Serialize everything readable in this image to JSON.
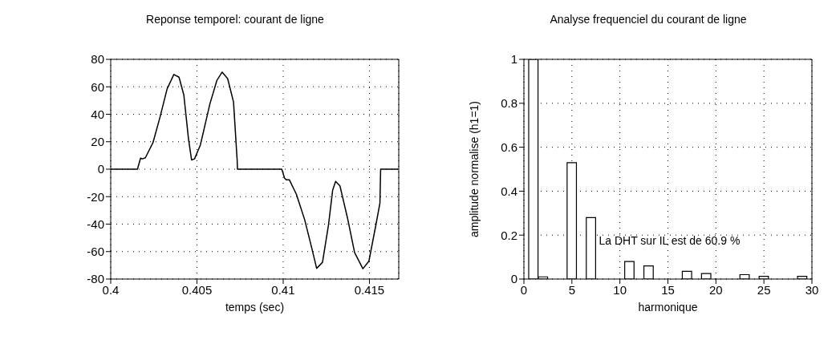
{
  "chart_data": [
    {
      "type": "line",
      "title": "Reponse temporel: courant de ligne",
      "xlabel": "temps (sec)",
      "x": [
        0.4,
        0.40155,
        0.40173,
        0.40183,
        0.40201,
        0.40245,
        0.40286,
        0.40327,
        0.40366,
        0.40396,
        0.40424,
        0.40451,
        0.40469,
        0.40486,
        0.4052,
        0.40575,
        0.40616,
        0.40646,
        0.40678,
        0.40712,
        0.40733,
        0.40735,
        0.40992,
        0.41008,
        0.41019,
        0.41036,
        0.41077,
        0.41125,
        0.41166,
        0.41194,
        0.41228,
        0.41263,
        0.41287,
        0.41304,
        0.41329,
        0.41373,
        0.41414,
        0.41462,
        0.41497,
        0.41538,
        0.41561,
        0.41565,
        0.41668
      ],
      "series": [
        {
          "color": "#000000",
          "values": [
            0,
            0,
            8,
            7.5,
            8.3,
            19.3,
            38,
            58.5,
            69,
            67,
            54,
            22,
            6.7,
            7.5,
            17.7,
            47.5,
            64.8,
            70.7,
            66,
            49,
            6.7,
            0,
            0,
            -6.6,
            -7.8,
            -7.8,
            -18.4,
            -37,
            -57.6,
            -72.2,
            -67.8,
            -40.3,
            -15.2,
            -8.9,
            -12.1,
            -35.6,
            -60.7,
            -72.5,
            -67,
            -40.3,
            -24.6,
            0,
            0
          ]
        }
      ],
      "xlim": [
        0.4,
        0.4167
      ],
      "xticks": [
        0.4,
        0.405,
        0.41,
        0.415
      ],
      "ylim": [
        -80,
        80
      ],
      "yticks": [
        -80,
        -60,
        -40,
        -20,
        0,
        20,
        40,
        60,
        80
      ],
      "grid": true,
      "marker": "none",
      "line_style": "solid",
      "legend": false
    },
    {
      "type": "bar",
      "title": "Analyse frequenciel du courant de ligne",
      "xlabel": "harmonique",
      "ylabel": "amplitude normalise (h1=1)",
      "x": [
        1,
        2,
        3,
        4,
        5,
        6,
        7,
        8,
        9,
        10,
        11,
        12,
        13,
        14,
        15,
        16,
        17,
        18,
        19,
        20,
        21,
        22,
        23,
        24,
        25,
        26,
        27,
        28,
        29,
        30
      ],
      "series": [
        {
          "color": "#000000",
          "values": [
            1,
            0.01,
            null,
            null,
            0.53,
            null,
            0.28,
            null,
            0,
            0,
            0.08,
            0,
            0.06,
            0,
            0,
            0,
            0.035,
            0,
            0.025,
            0,
            0,
            0,
            0.02,
            0,
            0.012,
            0,
            0,
            0,
            0.012,
            0
          ]
        }
      ],
      "xlim": [
        0,
        30
      ],
      "xticks": [
        0,
        5,
        10,
        15,
        20,
        25,
        30
      ],
      "ylim": [
        0,
        1
      ],
      "yticks": [
        0,
        0.2,
        0.4,
        0.6,
        0.8,
        1
      ],
      "grid": true,
      "legend": false,
      "annotations": [
        "La DHT sur IL est de 60.9 %"
      ]
    }
  ]
}
